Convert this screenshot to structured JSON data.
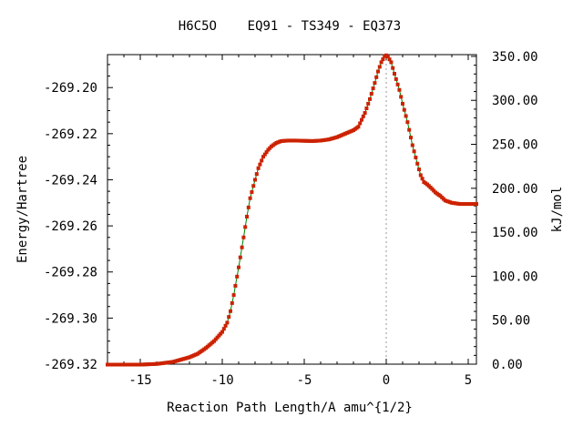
{
  "chart_data": {
    "type": "line",
    "title": "H6C5O    EQ91 - TS349 - EQ373",
    "xlabel": "Reaction Path Length/A amu^{1/2}",
    "ylabel": "Energy/Hartree",
    "y2label": "kJ/mol",
    "xlim": [
      -17.0,
      5.5
    ],
    "ylim": [
      -269.32,
      -269.1857
    ],
    "y2lim": [
      0,
      352
    ],
    "x_ticks": [
      -15,
      -10,
      -5,
      0,
      5
    ],
    "x_tick_labels": [
      "-15",
      "-10",
      "-5",
      "0",
      "5"
    ],
    "y_ticks": [
      -269.32,
      -269.3,
      -269.28,
      -269.26,
      -269.24,
      -269.22,
      -269.2
    ],
    "y_tick_labels": [
      "-269.32",
      "-269.30",
      "-269.28",
      "-269.26",
      "-269.24",
      "-269.22",
      "-269.20"
    ],
    "y2_ticks": [
      0,
      50,
      100,
      150,
      200,
      250,
      300,
      350
    ],
    "y2_tick_labels": [
      "0.00",
      "50.00",
      "100.00",
      "150.00",
      "200.00",
      "250.00",
      "300.00",
      "350.00"
    ],
    "ts_x": 0,
    "line_color": "#008000",
    "marker_color": "#cc2200",
    "ts_line_color": "#999999",
    "series": [
      {
        "x": [
          -17.0,
          -15.0,
          -14.0,
          -13.0,
          -12.5,
          -12.0,
          -11.5,
          -11.0,
          -10.5,
          -10.0,
          -9.7,
          -9.5,
          -9.3,
          -9.0,
          -8.7,
          -8.5,
          -8.3,
          -8.0,
          -7.8,
          -7.5,
          -7.2,
          -7.0,
          -6.7,
          -6.4,
          -6.0,
          -5.5,
          -5.0,
          -4.5,
          -4.0,
          -3.5,
          -3.0,
          -2.5,
          -2.0,
          -1.7,
          -1.5,
          -1.3,
          -1.0,
          -0.7,
          -0.5,
          -0.3,
          -0.1,
          0.0,
          0.1,
          0.3,
          0.5,
          0.8,
          1.0,
          1.3,
          1.6,
          1.9,
          2.1,
          2.3,
          2.5,
          2.8,
          3.0,
          3.3,
          3.6,
          4.0,
          4.5,
          5.0,
          5.5
        ],
        "y": [
          -269.3202,
          -269.3202,
          -269.3199,
          -269.319,
          -269.318,
          -269.317,
          -269.3155,
          -269.313,
          -269.31,
          -269.306,
          -269.302,
          -269.297,
          -269.29,
          -269.278,
          -269.265,
          -269.256,
          -269.248,
          -269.24,
          -269.235,
          -269.23,
          -269.227,
          -269.2255,
          -269.224,
          -269.2232,
          -269.223,
          -269.223,
          -269.2231,
          -269.2232,
          -269.223,
          -269.2225,
          -269.2215,
          -269.22,
          -269.2185,
          -269.217,
          -269.214,
          -269.211,
          -269.205,
          -269.198,
          -269.193,
          -269.189,
          -269.1864,
          -269.186,
          -269.1865,
          -269.189,
          -269.194,
          -269.201,
          -269.207,
          -269.215,
          -269.225,
          -269.233,
          -269.238,
          -269.241,
          -269.242,
          -269.244,
          -269.2455,
          -269.247,
          -269.249,
          -269.25,
          -269.2505,
          -269.2505,
          -269.2505
        ]
      }
    ]
  }
}
